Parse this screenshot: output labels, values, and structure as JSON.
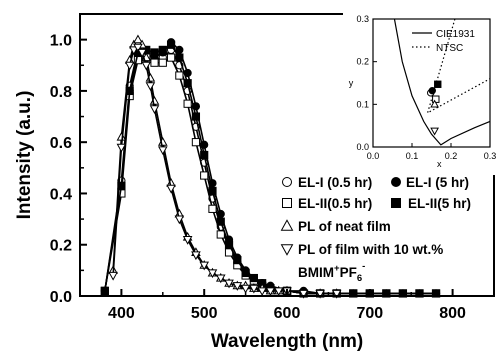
{
  "chart_data": [
    {
      "type": "line",
      "title": "",
      "xlabel": "Wavelength (nm)",
      "ylabel": "Intensity (a.u.)",
      "xlim": [
        350,
        850
      ],
      "ylim": [
        0,
        1.1
      ],
      "xticks": [
        "400",
        "500",
        "600",
        "700",
        "800"
      ],
      "yticks": [
        "0.0",
        "0.2",
        "0.4",
        "0.6",
        "0.8",
        "1.0"
      ],
      "legend_position": "right",
      "series": [
        {
          "name": "EL-I (0.5 hr)",
          "marker": "circle-open",
          "x": [
            380,
            400,
            410,
            420,
            430,
            440,
            450,
            460,
            470,
            480,
            490,
            500,
            510,
            520,
            530,
            540,
            550,
            560,
            570,
            580,
            600,
            620,
            640,
            660,
            680,
            700,
            720,
            740,
            760,
            780
          ],
          "y": [
            0.02,
            0.45,
            0.82,
            0.96,
            0.95,
            0.92,
            0.93,
            0.96,
            0.9,
            0.8,
            0.66,
            0.52,
            0.38,
            0.27,
            0.19,
            0.13,
            0.09,
            0.06,
            0.05,
            0.03,
            0.02,
            0.01,
            0.01,
            0.01,
            0.01,
            0.01,
            0.01,
            0.01,
            0.01,
            0.01
          ]
        },
        {
          "name": "EL-I (5 hr)",
          "marker": "circle-filled",
          "x": [
            380,
            400,
            410,
            420,
            430,
            440,
            450,
            460,
            470,
            480,
            490,
            500,
            510,
            520,
            530,
            540,
            550,
            560,
            570,
            580,
            600,
            620,
            640,
            660,
            680,
            700,
            720,
            740,
            760,
            780
          ],
          "y": [
            0.02,
            0.42,
            0.8,
            0.94,
            0.94,
            0.93,
            0.95,
            0.99,
            0.96,
            0.87,
            0.74,
            0.59,
            0.44,
            0.32,
            0.22,
            0.15,
            0.1,
            0.07,
            0.05,
            0.04,
            0.02,
            0.02,
            0.01,
            0.01,
            0.01,
            0.01,
            0.01,
            0.01,
            0.01,
            0.01
          ]
        },
        {
          "name": "EL-II(0.5 hr)",
          "marker": "square-open",
          "x": [
            380,
            400,
            410,
            420,
            430,
            440,
            450,
            460,
            470,
            480,
            490,
            500,
            510,
            520,
            530,
            540,
            550,
            560,
            570,
            580,
            600,
            620,
            640,
            660,
            680,
            700,
            720,
            740,
            760,
            780
          ],
          "y": [
            0.02,
            0.4,
            0.78,
            0.92,
            0.93,
            0.91,
            0.91,
            0.93,
            0.86,
            0.75,
            0.6,
            0.47,
            0.34,
            0.24,
            0.17,
            0.12,
            0.08,
            0.06,
            0.04,
            0.03,
            0.02,
            0.01,
            0.01,
            0.01,
            0.01,
            0.01,
            0.01,
            0.01,
            0.01,
            0.01
          ]
        },
        {
          "name": "EL-II(5 hr)",
          "marker": "square-filled",
          "x": [
            380,
            400,
            410,
            420,
            430,
            440,
            450,
            460,
            470,
            480,
            490,
            500,
            510,
            520,
            530,
            540,
            550,
            560,
            570,
            580,
            600,
            620,
            640,
            660,
            680,
            700,
            720,
            740,
            760,
            780
          ],
          "y": [
            0.02,
            0.43,
            0.8,
            0.95,
            0.96,
            0.95,
            0.96,
            0.98,
            0.93,
            0.83,
            0.7,
            0.55,
            0.41,
            0.29,
            0.2,
            0.14,
            0.09,
            0.07,
            0.05,
            0.03,
            0.02,
            0.01,
            0.01,
            0.01,
            0.01,
            0.01,
            0.01,
            0.01,
            0.01,
            0.01
          ]
        },
        {
          "name": "PL of neat film",
          "marker": "triangle-up-open",
          "x": [
            390,
            400,
            410,
            415,
            420,
            425,
            430,
            435,
            440,
            450,
            460,
            470,
            480,
            490,
            500,
            510,
            520,
            530,
            540,
            550,
            560,
            570,
            580,
            590,
            600,
            620,
            640,
            660
          ],
          "y": [
            0.1,
            0.62,
            0.92,
            0.98,
            1.0,
            0.98,
            0.93,
            0.85,
            0.76,
            0.6,
            0.44,
            0.32,
            0.23,
            0.17,
            0.12,
            0.09,
            0.07,
            0.05,
            0.04,
            0.04,
            0.03,
            0.03,
            0.02,
            0.02,
            0.02,
            0.01,
            0.01,
            0.01
          ]
        },
        {
          "name": "PL of film with 10 wt.% BMIM⁺PF₆⁻",
          "marker": "triangle-down-open",
          "x": [
            390,
            400,
            410,
            415,
            420,
            425,
            430,
            435,
            440,
            450,
            460,
            470,
            480,
            490,
            500,
            510,
            520,
            530,
            540,
            550,
            560,
            570,
            580,
            590,
            600,
            620,
            640,
            660
          ],
          "y": [
            0.08,
            0.58,
            0.9,
            0.96,
            0.97,
            0.95,
            0.9,
            0.82,
            0.73,
            0.57,
            0.42,
            0.3,
            0.22,
            0.16,
            0.12,
            0.09,
            0.07,
            0.05,
            0.04,
            0.03,
            0.03,
            0.02,
            0.02,
            0.02,
            0.02,
            0.01,
            0.01,
            0.01
          ]
        }
      ]
    },
    {
      "type": "scatter",
      "title": "",
      "xlabel": "x",
      "ylabel": "y",
      "xlim": [
        0,
        0.3
      ],
      "ylim": [
        0,
        0.3
      ],
      "xticks": [
        "0.0",
        "0.1",
        "0.2",
        "0.3"
      ],
      "yticks": [
        "0.0",
        "0.1",
        "0.2",
        "0.3"
      ],
      "legend_position": "top-right",
      "lines": [
        {
          "name": "CIE1931",
          "style": "solid"
        },
        {
          "name": "NTSC",
          "style": "dotted"
        }
      ],
      "points": [
        {
          "series": "EL-I (0.5 hr)",
          "marker": "circle-open",
          "x": 0.148,
          "y": 0.127
        },
        {
          "series": "EL-I (5 hr)",
          "marker": "circle-filled",
          "x": 0.152,
          "y": 0.132
        },
        {
          "series": "EL-II(0.5 hr)",
          "marker": "square-open",
          "x": 0.161,
          "y": 0.112
        },
        {
          "series": "EL-II(5 hr)",
          "marker": "square-filled",
          "x": 0.166,
          "y": 0.147
        },
        {
          "series": "PL of neat film",
          "marker": "triangle-up-open",
          "x": 0.158,
          "y": 0.1
        },
        {
          "series": "PL of film with 10 wt.% BMIM⁺PF₆⁻",
          "marker": "triangle-down-open",
          "x": 0.158,
          "y": 0.038
        }
      ]
    }
  ],
  "legend": {
    "row1_left": "EL-I (0.5 hr)",
    "row1_right": "EL-I (5 hr)",
    "row2_left": "EL-II(0.5 hr)",
    "row2_right": "EL-II(5 hr)",
    "row3": "PL of neat film",
    "row4": "PL of film with 10 wt.%",
    "row5_base": "BMIM",
    "row5_sup1": "+",
    "row5_mid": "PF",
    "row5_sub": "6",
    "row5_sup2": "-"
  }
}
